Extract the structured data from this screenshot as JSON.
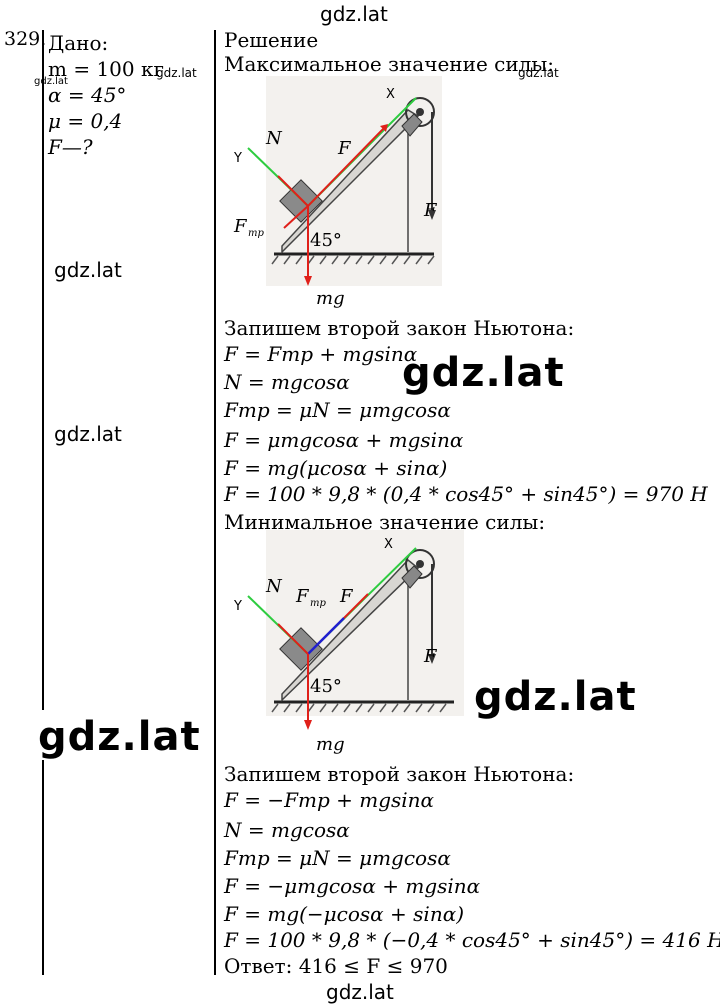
{
  "watermarks": {
    "top": "gdz.lat",
    "near_mass": "gdz.lat",
    "near_given": "gdz.lat",
    "near_solution": "gdz.lat",
    "left_1": "gdz.lat",
    "left_2": "gdz.lat",
    "mid_big": "gdz.lat",
    "right_big": "gdz.lat",
    "left_big": "gdz.lat",
    "bottom": "gdz.lat"
  },
  "problem_number": "329.",
  "given": {
    "label": "Дано:",
    "m": "m = 100 кг",
    "alpha": "α = 45°",
    "mu": "μ = 0,4",
    "unknown": "F—?"
  },
  "solution": {
    "label": "Решение",
    "max_title": "Максимальное значение силы:",
    "newton_1": "Запишем второй закон Ньютона:",
    "max_eqs": [
      "F = Fтр + mgsinα",
      "N = mgcosα",
      "Fтр = μN = μmgcosα",
      "F = μmgcosα + mgsinα",
      "F = mg(μcosα + sinα)",
      "F = 100 * 9,8 * (0,4 * cos45° + sin45°) = 970 Н"
    ],
    "min_title": "Минимальное значение силы:",
    "newton_2": "Запишем второй закон Ньютона:",
    "min_eqs": [
      "F = −Fтр + mgsinα",
      "N = mgcosα",
      "Fтр = μN = μmgcosα",
      "F = −μmgcosα + mgsinα",
      "F = mg(−μcosα + sinα)",
      "F = 100 * 9,8 * (−0,4 * cos45° + sin45°) = 416 Н"
    ],
    "answer": "Ответ: 416 ≤ F ≤ 970"
  },
  "figure_labels": {
    "x": "X",
    "y": "Y",
    "n": "N",
    "f": "F",
    "ftr": "F",
    "ftr_sub": "тр",
    "mg": "mg",
    "angle": "45°"
  },
  "colors": {
    "green": "#2ecc40",
    "red": "#e0201a",
    "blue": "#2020d0",
    "bg_fig": "#f3f1ee"
  }
}
